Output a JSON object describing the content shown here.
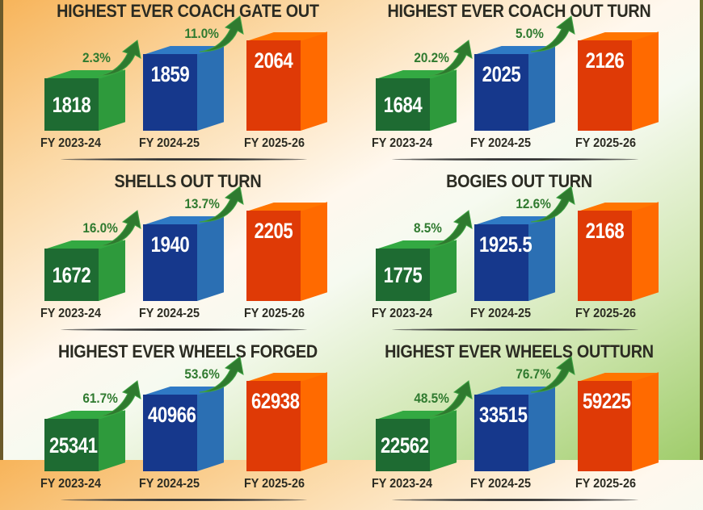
{
  "colors": {
    "bar_2023": "#1e6b32",
    "bar_2023_side": "#2e9a3c",
    "bar_2024": "#16388c",
    "bar_2024_side": "#2b6fb3",
    "bar_2025": "#df3a06",
    "bar_2025_side": "#ff6a00",
    "growth": "#2f7a2f"
  },
  "chart_data": [
    {
      "type": "bar",
      "title": "HIGHEST EVER COACH GATE OUT",
      "categories": [
        "FY 2023-24",
        "FY 2024-25",
        "FY 2025-26"
      ],
      "values": [
        "1818",
        "1859",
        "2064"
      ],
      "growth": [
        "2.3%",
        "11.0%"
      ]
    },
    {
      "type": "bar",
      "title": "HIGHEST EVER COACH OUT TURN",
      "categories": [
        "FY 2023-24",
        "FY 2024-25",
        "FY 2025-26"
      ],
      "values": [
        "1684",
        "2025",
        "2126"
      ],
      "growth": [
        "20.2%",
        "5.0%"
      ]
    },
    {
      "type": "bar",
      "title": "SHELLS OUT TURN",
      "categories": [
        "FY 2023-24",
        "FY 2024-25",
        "FY 2025-26"
      ],
      "values": [
        "1672",
        "1940",
        "2205"
      ],
      "growth": [
        "16.0%",
        "13.7%"
      ]
    },
    {
      "type": "bar",
      "title": "BOGIES OUT TURN",
      "categories": [
        "FY 2023-24",
        "FY 2024-25",
        "FY 2025-26"
      ],
      "values": [
        "1775",
        "1925.5",
        "2168"
      ],
      "growth": [
        "8.5%",
        "12.6%"
      ]
    },
    {
      "type": "bar",
      "title": "HIGHEST EVER WHEELS FORGED",
      "categories": [
        "FY 2023-24",
        "FY 2024-25",
        "FY 2025-26"
      ],
      "values": [
        "25341",
        "40966",
        "62938"
      ],
      "growth": [
        "61.7%",
        "53.6%"
      ]
    },
    {
      "type": "bar",
      "title": "HIGHEST EVER WHEELS OUTTURN",
      "categories": [
        "FY 2023-24",
        "FY 2024-25",
        "FY 2025-26"
      ],
      "values": [
        "22562",
        "33515",
        "59225"
      ],
      "growth": [
        "48.5%",
        "76.7%"
      ]
    }
  ]
}
